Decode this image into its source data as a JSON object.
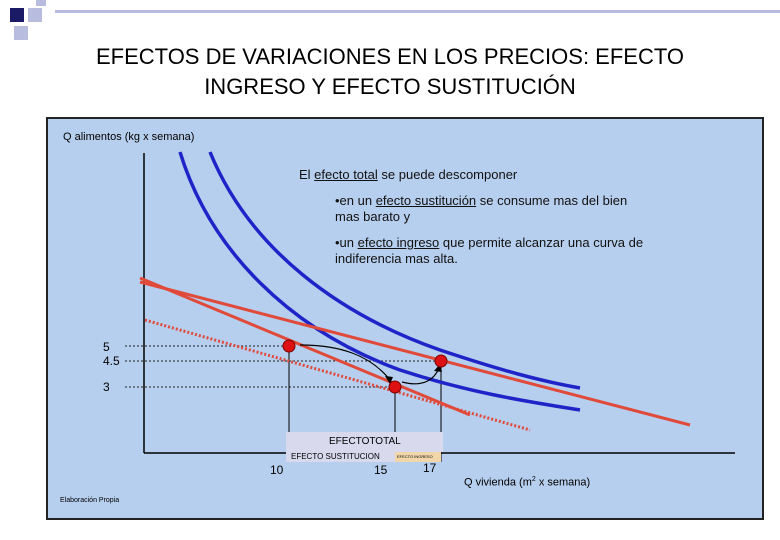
{
  "slide": {
    "title_line1": "EFECTOS DE VARIACIONES EN LOS PRECIOS: EFECTO",
    "title_line2": "INGRESO Y EFECTO SUSTITUCIÓN"
  },
  "chart": {
    "ylabel": "Q alimentos (kg x semana)",
    "xlabel": "Q vivienda (m",
    "xlabel_sup": "2",
    "xlabel_tail": " x semana)",
    "source": "Elaboración Propia",
    "y_ticks": [
      "5",
      "4.5",
      "3"
    ],
    "x_ticks": [
      "10",
      "15",
      "17"
    ]
  },
  "text": {
    "line1_a": "El ",
    "line1_u": "efecto total",
    "line1_b": " se puede descomponer",
    "b1_a": "•en un ",
    "b1_u": "efecto sustitución",
    "b1_b": " se consume mas del bien",
    "b1_c": "mas barato y",
    "b2_a": "•un ",
    "b2_u": "efecto ingreso",
    "b2_b": " que permite alcanzar una curva de",
    "b2_c": "indiferencia mas alta."
  },
  "effects": {
    "total": "EFECTOTOTAL",
    "substitution": "EFECTO SUSTITUCION",
    "income": "EFECTO INGRESO"
  },
  "colors": {
    "panel": "#b7cfee",
    "curve": "#1f24c8",
    "budget": "#e04a3a",
    "point": "#dd1111"
  }
}
